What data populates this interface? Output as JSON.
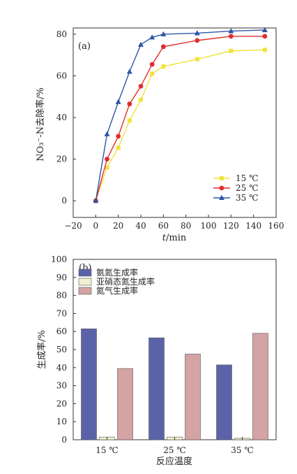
{
  "chart_data": [
    {
      "panel_label": "(a)",
      "type": "line",
      "xlabel_italic": "t",
      "xlabel_unit": "/min",
      "ylabel": "NO₃⁻-N去除率/%",
      "xlim": [
        -20,
        160
      ],
      "ylim": [
        -8,
        83
      ],
      "xticks": [
        -20,
        0,
        20,
        40,
        60,
        80,
        100,
        120,
        140,
        160
      ],
      "yticks": [
        0,
        20,
        40,
        60,
        80
      ],
      "legend_position": "bottom-right",
      "grid": false,
      "series": [
        {
          "name": "15 ℃",
          "color": "#f2e23c",
          "marker": "square",
          "x": [
            0,
            10,
            20,
            30,
            40,
            50,
            60,
            90,
            120,
            150
          ],
          "y": [
            0,
            16,
            25.5,
            38.5,
            48.5,
            61,
            64.5,
            68,
            72,
            72.5
          ]
        },
        {
          "name": "25 ℃",
          "color": "#e02d2d",
          "marker": "circle",
          "x": [
            0,
            10,
            20,
            30,
            40,
            50,
            60,
            90,
            120,
            150
          ],
          "y": [
            0,
            20,
            31,
            46.5,
            55,
            65.5,
            74,
            77,
            79,
            79
          ]
        },
        {
          "name": "35 ℃",
          "color": "#2e55a8",
          "marker": "triangle",
          "x": [
            0,
            10,
            20,
            30,
            40,
            50,
            60,
            90,
            120,
            150
          ],
          "y": [
            0,
            32,
            47.5,
            62,
            75,
            78.5,
            80,
            80.5,
            81.5,
            82
          ]
        }
      ]
    },
    {
      "panel_label": "(b)",
      "type": "bar",
      "xlabel": "反应温度",
      "ylabel": "生成率/%",
      "ylim": [
        0,
        100
      ],
      "yticks": [
        0,
        10,
        20,
        30,
        40,
        50,
        60,
        70,
        80,
        90,
        100
      ],
      "legend_position": "top-left",
      "grid": false,
      "categories": [
        "15 ℃",
        "25 ℃",
        "35 ℃"
      ],
      "series": [
        {
          "name": "氨氮生成率",
          "color": "#5b63a8",
          "values": [
            61.5,
            56.5,
            41.5
          ]
        },
        {
          "name": "亚硝态氮生成率",
          "color": "#f2f0cf",
          "values": [
            1.5,
            1.5,
            0.8
          ]
        },
        {
          "name": "氮气生成率",
          "color": "#d4a3a3",
          "values": [
            39.5,
            47.5,
            59
          ]
        }
      ]
    }
  ]
}
